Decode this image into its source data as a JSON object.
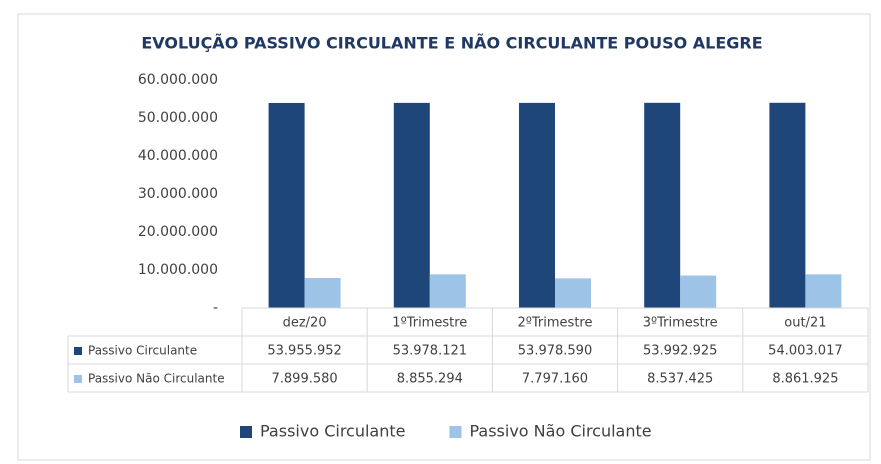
{
  "chart_data": {
    "type": "bar",
    "title": "EVOLUÇÃO PASSIVO CIRCULANTE E NÃO CIRCULANTE POUSO ALEGRE",
    "categories": [
      "dez/20",
      "1ºTrimestre",
      "2ºTrimestre",
      "3ºTrimestre",
      "out/21"
    ],
    "series": [
      {
        "name": "Passivo Circulante",
        "color": "#1f4679",
        "values": [
          53955952,
          53978121,
          53978590,
          53992925,
          54003017
        ],
        "value_labels": [
          "53.955.952",
          "53.978.121",
          "53.978.590",
          "53.992.925",
          "54.003.017"
        ]
      },
      {
        "name": "Passivo Não Circulante",
        "color": "#9dc3e6",
        "values": [
          7899580,
          8855294,
          7797160,
          8537425,
          8861925
        ],
        "value_labels": [
          "7.899.580",
          "8.855.294",
          "7.797.160",
          "8.537.425",
          "8.861.925"
        ]
      }
    ],
    "ylim": [
      0,
      60000000
    ],
    "yticks": [
      {
        "value": 0,
        "label": "-"
      },
      {
        "value": 10000000,
        "label": "10.000.000"
      },
      {
        "value": 20000000,
        "label": "20.000.000"
      },
      {
        "value": 30000000,
        "label": "30.000.000"
      },
      {
        "value": 40000000,
        "label": "40.000.000"
      },
      {
        "value": 50000000,
        "label": "50.000.000"
      },
      {
        "value": 60000000,
        "label": "60.000.000"
      }
    ],
    "grid": false,
    "legend": "bottom"
  }
}
